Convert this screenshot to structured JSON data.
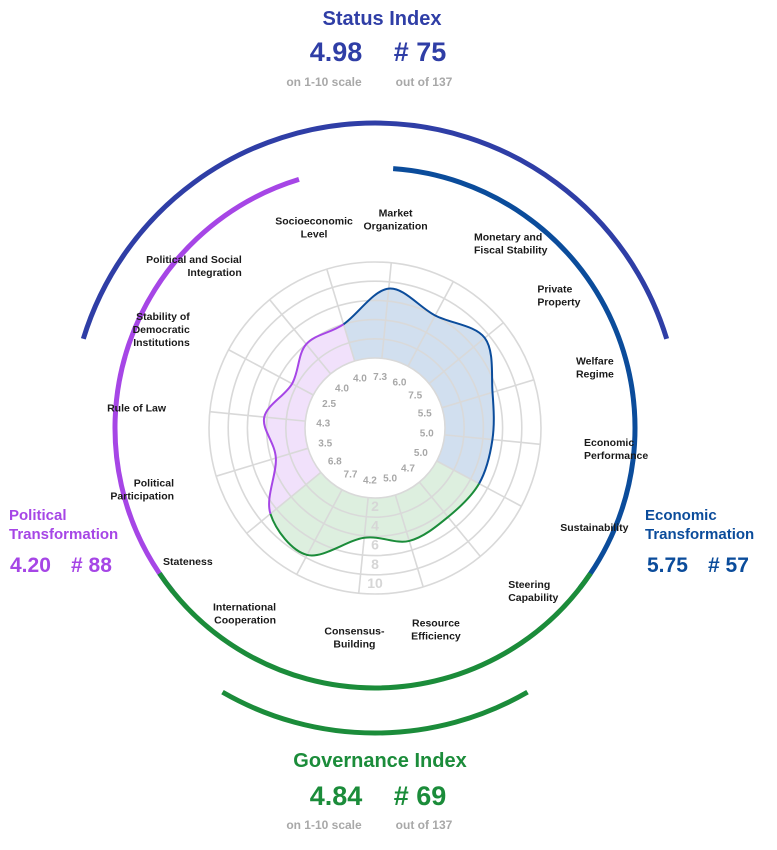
{
  "colors": {
    "status": "#2f3ea6",
    "economic": "#0b4c9b",
    "political": "#a646e6",
    "governance": "#1b8c3a",
    "muted": "#a8a8a8",
    "text": "#1a1a1a"
  },
  "status_index": {
    "title": "Status Index",
    "score": "4.98",
    "rank": "# 75",
    "score_caption": "on 1-10 scale",
    "rank_caption": "out of 137"
  },
  "governance_index": {
    "title": "Governance Index",
    "score": "4.84",
    "rank": "# 69",
    "score_caption": "on 1-10 scale",
    "rank_caption": "out of 137"
  },
  "political_transformation": {
    "title_line1": "Political",
    "title_line2": "Transformation",
    "score": "4.20",
    "rank": "# 88"
  },
  "economic_transformation": {
    "title_line1": "Economic",
    "title_line2": "Transformation",
    "score": "5.75",
    "rank": "# 57"
  },
  "chart_data": {
    "type": "radar",
    "scale": [
      2,
      4,
      6,
      8,
      10
    ],
    "scale_labels": [
      "2",
      "4",
      "6",
      "8",
      "10"
    ],
    "categories": [
      {
        "label": [
          "Market",
          "Organization"
        ],
        "value": 7.3,
        "value_label": "7.3",
        "group": "economic"
      },
      {
        "label": [
          "Monetary and",
          "Fiscal Stability"
        ],
        "value": 6.0,
        "value_label": "6.0",
        "group": "economic"
      },
      {
        "label": [
          "Private",
          "Property"
        ],
        "value": 7.5,
        "value_label": "7.5",
        "group": "economic"
      },
      {
        "label": [
          "Welfare",
          "Regime"
        ],
        "value": 5.5,
        "value_label": "5.5",
        "group": "economic"
      },
      {
        "label": [
          "Economic",
          "Performance"
        ],
        "value": 5.0,
        "value_label": "5.0",
        "group": "economic"
      },
      {
        "label": [
          "Sustainability"
        ],
        "value": 5.0,
        "value_label": "5.0",
        "group": "economic"
      },
      {
        "label": [
          "Steering",
          "Capability"
        ],
        "value": 4.7,
        "value_label": "4.7",
        "group": "governance"
      },
      {
        "label": [
          "Resource",
          "Efficiency"
        ],
        "value": 5.0,
        "value_label": "5.0",
        "group": "governance"
      },
      {
        "label": [
          "Consensus-",
          "Building"
        ],
        "value": 4.2,
        "value_label": "4.2",
        "group": "governance"
      },
      {
        "label": [
          "International",
          "Cooperation"
        ],
        "value": 7.7,
        "value_label": "7.7",
        "group": "governance"
      },
      {
        "label": [
          "Stateness"
        ],
        "value": 6.8,
        "value_label": "6.8",
        "group": "political"
      },
      {
        "label": [
          "Political",
          "Participation"
        ],
        "value": 3.5,
        "value_label": "3.5",
        "group": "political"
      },
      {
        "label": [
          "Rule of Law"
        ],
        "value": 4.3,
        "value_label": "4.3",
        "group": "political"
      },
      {
        "label": [
          "Stability of",
          "Democratic",
          "Institutions"
        ],
        "value": 2.5,
        "value_label": "2.5",
        "group": "political"
      },
      {
        "label": [
          "Political and Social",
          "Integration"
        ],
        "value": 4.0,
        "value_label": "4.0",
        "group": "political"
      },
      {
        "label": [
          "Socioeconomic",
          "Level"
        ],
        "value": 4.0,
        "value_label": "4.0",
        "group": "economic"
      }
    ]
  }
}
